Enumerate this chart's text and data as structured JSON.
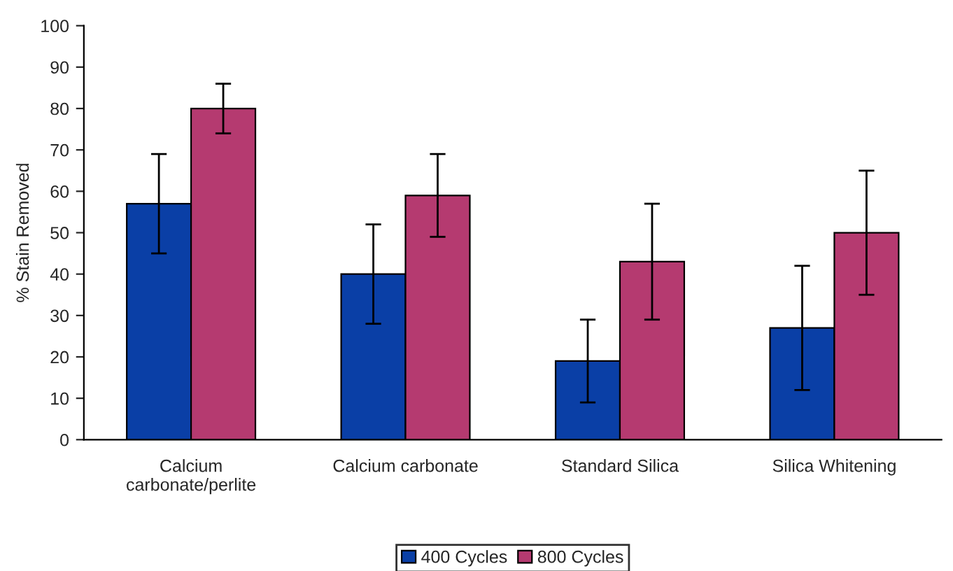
{
  "chart_data": {
    "type": "bar",
    "ylabel": "% Stain Removed",
    "categories": [
      "Calcium\ncarbonate/perlite",
      "Calcium carbonate",
      "Standard Silica",
      "Silica Whitening"
    ],
    "series": [
      {
        "name": "400 Cycles",
        "color": "#0a3fa6",
        "values": [
          57,
          40,
          19,
          27
        ],
        "errors": [
          [
            45,
            69
          ],
          [
            28,
            52
          ],
          [
            9,
            29
          ],
          [
            12,
            42
          ]
        ]
      },
      {
        "name": "800 Cycles",
        "color": "#b53a70",
        "values": [
          80,
          59,
          43,
          50
        ],
        "errors": [
          [
            74,
            86
          ],
          [
            49,
            69
          ],
          [
            29,
            57
          ],
          [
            35,
            65
          ]
        ]
      }
    ],
    "ylim": [
      0,
      100
    ],
    "yticks": [
      0,
      10,
      20,
      30,
      40,
      50,
      60,
      70,
      80,
      90,
      100
    ],
    "grid": false,
    "legend": "bottom"
  }
}
